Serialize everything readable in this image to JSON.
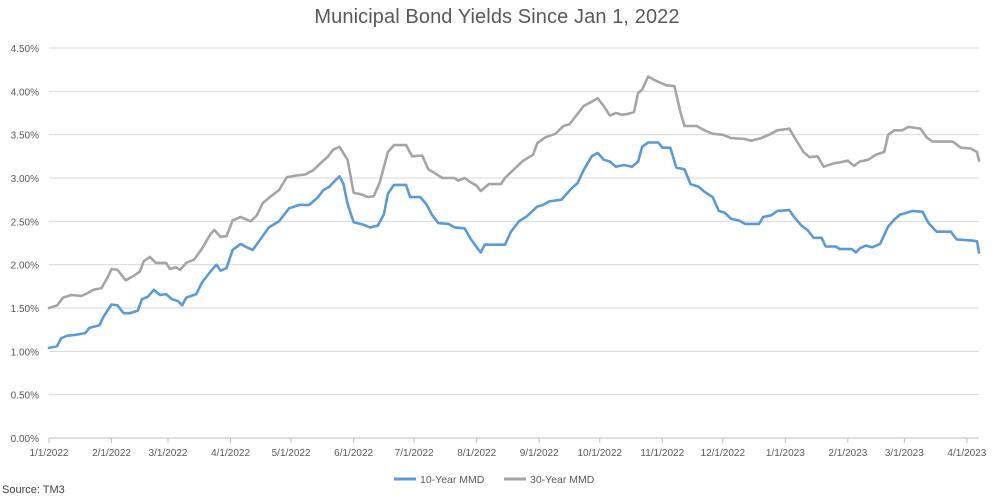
{
  "chart_data": {
    "type": "line",
    "title": "Municipal Bond Yields Since Jan 1, 2022",
    "source": "Source: TM3",
    "xlabel": "",
    "ylabel": "",
    "ylim": [
      0,
      4.5
    ],
    "y_ticks": [
      "0.00%",
      "0.50%",
      "1.00%",
      "1.50%",
      "2.00%",
      "2.50%",
      "3.00%",
      "3.50%",
      "4.00%",
      "4.50%"
    ],
    "x_ticks": [
      "1/1/2022",
      "2/1/2022",
      "3/1/2022",
      "4/1/2022",
      "5/1/2022",
      "6/1/2022",
      "7/1/2022",
      "8/1/2022",
      "9/1/2022",
      "10/1/2022",
      "11/1/2022",
      "12/1/2022",
      "1/1/2023",
      "2/1/2023",
      "3/1/2023",
      "4/1/2023"
    ],
    "x_range": [
      "2022-01-01",
      "2023-04-07"
    ],
    "grid": "horizontal",
    "legend": "bottom-center",
    "series": [
      {
        "name": "10-Year MMD",
        "color": "#5B9BD5",
        "points": [
          [
            "2022-01-01",
            1.04
          ],
          [
            "2022-01-05",
            1.06
          ],
          [
            "2022-01-07",
            1.15
          ],
          [
            "2022-01-10",
            1.18
          ],
          [
            "2022-01-14",
            1.19
          ],
          [
            "2022-01-19",
            1.21
          ],
          [
            "2022-01-21",
            1.27
          ],
          [
            "2022-01-26",
            1.3
          ],
          [
            "2022-01-28",
            1.4
          ],
          [
            "2022-02-01",
            1.54
          ],
          [
            "2022-02-04",
            1.53
          ],
          [
            "2022-02-07",
            1.44
          ],
          [
            "2022-02-10",
            1.44
          ],
          [
            "2022-02-14",
            1.47
          ],
          [
            "2022-02-16",
            1.6
          ],
          [
            "2022-02-19",
            1.63
          ],
          [
            "2022-02-22",
            1.71
          ],
          [
            "2022-02-25",
            1.65
          ],
          [
            "2022-02-28",
            1.66
          ],
          [
            "2022-03-03",
            1.6
          ],
          [
            "2022-03-06",
            1.58
          ],
          [
            "2022-03-08",
            1.53
          ],
          [
            "2022-03-10",
            1.62
          ],
          [
            "2022-03-15",
            1.66
          ],
          [
            "2022-03-18",
            1.8
          ],
          [
            "2022-03-22",
            1.92
          ],
          [
            "2022-03-25",
            2.0
          ],
          [
            "2022-03-27",
            1.93
          ],
          [
            "2022-03-30",
            1.96
          ],
          [
            "2022-04-02",
            2.17
          ],
          [
            "2022-04-06",
            2.24
          ],
          [
            "2022-04-09",
            2.2
          ],
          [
            "2022-04-12",
            2.17
          ],
          [
            "2022-04-16",
            2.3
          ],
          [
            "2022-04-20",
            2.43
          ],
          [
            "2022-04-25",
            2.5
          ],
          [
            "2022-04-30",
            2.65
          ],
          [
            "2022-05-05",
            2.69
          ],
          [
            "2022-05-10",
            2.69
          ],
          [
            "2022-05-14",
            2.77
          ],
          [
            "2022-05-17",
            2.86
          ],
          [
            "2022-05-20",
            2.9
          ],
          [
            "2022-05-22",
            2.95
          ],
          [
            "2022-05-25",
            3.02
          ],
          [
            "2022-05-27",
            2.93
          ],
          [
            "2022-05-29",
            2.7
          ],
          [
            "2022-06-01",
            2.49
          ],
          [
            "2022-06-06",
            2.46
          ],
          [
            "2022-06-09",
            2.43
          ],
          [
            "2022-06-13",
            2.45
          ],
          [
            "2022-06-16",
            2.58
          ],
          [
            "2022-06-18",
            2.82
          ],
          [
            "2022-06-21",
            2.92
          ],
          [
            "2022-06-27",
            2.92
          ],
          [
            "2022-06-29",
            2.78
          ],
          [
            "2022-07-04",
            2.78
          ],
          [
            "2022-07-07",
            2.7
          ],
          [
            "2022-07-10",
            2.57
          ],
          [
            "2022-07-13",
            2.48
          ],
          [
            "2022-07-18",
            2.47
          ],
          [
            "2022-07-21",
            2.43
          ],
          [
            "2022-07-26",
            2.42
          ],
          [
            "2022-07-29",
            2.3
          ],
          [
            "2022-08-01",
            2.2
          ],
          [
            "2022-08-03",
            2.14
          ],
          [
            "2022-08-05",
            2.23
          ],
          [
            "2022-08-15",
            2.23
          ],
          [
            "2022-08-18",
            2.38
          ],
          [
            "2022-08-22",
            2.5
          ],
          [
            "2022-08-26",
            2.56
          ],
          [
            "2022-08-31",
            2.67
          ],
          [
            "2022-09-03",
            2.69
          ],
          [
            "2022-09-06",
            2.73
          ],
          [
            "2022-09-12",
            2.75
          ],
          [
            "2022-09-17",
            2.88
          ],
          [
            "2022-09-20",
            2.94
          ],
          [
            "2022-09-23",
            3.09
          ],
          [
            "2022-09-27",
            3.25
          ],
          [
            "2022-09-30",
            3.29
          ],
          [
            "2022-10-03",
            3.21
          ],
          [
            "2022-10-06",
            3.19
          ],
          [
            "2022-10-09",
            3.13
          ],
          [
            "2022-10-13",
            3.15
          ],
          [
            "2022-10-17",
            3.13
          ],
          [
            "2022-10-20",
            3.19
          ],
          [
            "2022-10-22",
            3.36
          ],
          [
            "2022-10-25",
            3.41
          ],
          [
            "2022-10-30",
            3.41
          ],
          [
            "2022-11-01",
            3.35
          ],
          [
            "2022-11-05",
            3.35
          ],
          [
            "2022-11-08",
            3.12
          ],
          [
            "2022-11-12",
            3.1
          ],
          [
            "2022-11-15",
            2.93
          ],
          [
            "2022-11-19",
            2.9
          ],
          [
            "2022-11-22",
            2.84
          ],
          [
            "2022-11-26",
            2.78
          ],
          [
            "2022-11-29",
            2.62
          ],
          [
            "2022-12-02",
            2.6
          ],
          [
            "2022-12-05",
            2.53
          ],
          [
            "2022-12-09",
            2.51
          ],
          [
            "2022-12-12",
            2.47
          ],
          [
            "2022-12-19",
            2.47
          ],
          [
            "2022-12-21",
            2.55
          ],
          [
            "2022-12-25",
            2.57
          ],
          [
            "2022-12-28",
            2.62
          ],
          [
            "2023-01-03",
            2.63
          ],
          [
            "2023-01-05",
            2.56
          ],
          [
            "2023-01-09",
            2.45
          ],
          [
            "2023-01-12",
            2.4
          ],
          [
            "2023-01-15",
            2.31
          ],
          [
            "2023-01-19",
            2.31
          ],
          [
            "2023-01-21",
            2.21
          ],
          [
            "2023-01-26",
            2.21
          ],
          [
            "2023-01-28",
            2.18
          ],
          [
            "2023-02-03",
            2.18
          ],
          [
            "2023-02-05",
            2.14
          ],
          [
            "2023-02-07",
            2.19
          ],
          [
            "2023-02-10",
            2.22
          ],
          [
            "2023-02-13",
            2.2
          ],
          [
            "2023-02-17",
            2.24
          ],
          [
            "2023-02-21",
            2.44
          ],
          [
            "2023-02-24",
            2.52
          ],
          [
            "2023-02-27",
            2.58
          ],
          [
            "2023-03-01",
            2.59
          ],
          [
            "2023-03-05",
            2.62
          ],
          [
            "2023-03-10",
            2.61
          ],
          [
            "2023-03-13",
            2.48
          ],
          [
            "2023-03-17",
            2.38
          ],
          [
            "2023-03-24",
            2.38
          ],
          [
            "2023-03-27",
            2.29
          ],
          [
            "2023-04-03",
            2.28
          ],
          [
            "2023-04-06",
            2.27
          ],
          [
            "2023-04-07",
            2.14
          ]
        ]
      },
      {
        "name": "30-Year MMD",
        "color": "#A5A5A5",
        "points": [
          [
            "2022-01-01",
            1.5
          ],
          [
            "2022-01-05",
            1.53
          ],
          [
            "2022-01-08",
            1.62
          ],
          [
            "2022-01-12",
            1.65
          ],
          [
            "2022-01-17",
            1.64
          ],
          [
            "2022-01-20",
            1.67
          ],
          [
            "2022-01-23",
            1.71
          ],
          [
            "2022-01-27",
            1.73
          ],
          [
            "2022-01-30",
            1.85
          ],
          [
            "2022-02-01",
            1.95
          ],
          [
            "2022-02-04",
            1.94
          ],
          [
            "2022-02-08",
            1.82
          ],
          [
            "2022-02-12",
            1.87
          ],
          [
            "2022-02-15",
            1.92
          ],
          [
            "2022-02-17",
            2.04
          ],
          [
            "2022-02-20",
            2.09
          ],
          [
            "2022-02-23",
            2.02
          ],
          [
            "2022-02-28",
            2.02
          ],
          [
            "2022-03-02",
            1.95
          ],
          [
            "2022-03-05",
            1.97
          ],
          [
            "2022-03-07",
            1.94
          ],
          [
            "2022-03-10",
            2.02
          ],
          [
            "2022-03-14",
            2.06
          ],
          [
            "2022-03-18",
            2.19
          ],
          [
            "2022-03-22",
            2.35
          ],
          [
            "2022-03-24",
            2.4
          ],
          [
            "2022-03-27",
            2.32
          ],
          [
            "2022-03-30",
            2.33
          ],
          [
            "2022-04-02",
            2.51
          ],
          [
            "2022-04-06",
            2.55
          ],
          [
            "2022-04-11",
            2.5
          ],
          [
            "2022-04-14",
            2.57
          ],
          [
            "2022-04-17",
            2.71
          ],
          [
            "2022-04-21",
            2.79
          ],
          [
            "2022-04-25",
            2.86
          ],
          [
            "2022-04-29",
            3.01
          ],
          [
            "2022-05-04",
            3.03
          ],
          [
            "2022-05-08",
            3.04
          ],
          [
            "2022-05-12",
            3.09
          ],
          [
            "2022-05-16",
            3.18
          ],
          [
            "2022-05-19",
            3.24
          ],
          [
            "2022-05-22",
            3.33
          ],
          [
            "2022-05-25",
            3.36
          ],
          [
            "2022-05-29",
            3.21
          ],
          [
            "2022-06-01",
            2.83
          ],
          [
            "2022-06-05",
            2.81
          ],
          [
            "2022-06-08",
            2.78
          ],
          [
            "2022-06-11",
            2.79
          ],
          [
            "2022-06-14",
            2.95
          ],
          [
            "2022-06-18",
            3.3
          ],
          [
            "2022-06-21",
            3.38
          ],
          [
            "2022-06-27",
            3.38
          ],
          [
            "2022-06-30",
            3.25
          ],
          [
            "2022-07-05",
            3.26
          ],
          [
            "2022-07-08",
            3.1
          ],
          [
            "2022-07-11",
            3.06
          ],
          [
            "2022-07-15",
            3.0
          ],
          [
            "2022-07-21",
            3.0
          ],
          [
            "2022-07-23",
            2.97
          ],
          [
            "2022-07-26",
            3.0
          ],
          [
            "2022-07-29",
            2.95
          ],
          [
            "2022-08-01",
            2.91
          ],
          [
            "2022-08-03",
            2.85
          ],
          [
            "2022-08-07",
            2.93
          ],
          [
            "2022-08-13",
            2.93
          ],
          [
            "2022-08-15",
            3.0
          ],
          [
            "2022-08-19",
            3.09
          ],
          [
            "2022-08-24",
            3.2
          ],
          [
            "2022-08-29",
            3.27
          ],
          [
            "2022-08-31",
            3.4
          ],
          [
            "2022-09-04",
            3.47
          ],
          [
            "2022-09-09",
            3.51
          ],
          [
            "2022-09-13",
            3.6
          ],
          [
            "2022-09-16",
            3.62
          ],
          [
            "2022-09-19",
            3.71
          ],
          [
            "2022-09-23",
            3.83
          ],
          [
            "2022-09-27",
            3.88
          ],
          [
            "2022-09-30",
            3.92
          ],
          [
            "2022-10-03",
            3.83
          ],
          [
            "2022-10-06",
            3.72
          ],
          [
            "2022-10-09",
            3.75
          ],
          [
            "2022-10-12",
            3.73
          ],
          [
            "2022-10-15",
            3.74
          ],
          [
            "2022-10-18",
            3.76
          ],
          [
            "2022-10-20",
            3.98
          ],
          [
            "2022-10-22",
            4.02
          ],
          [
            "2022-10-25",
            4.17
          ],
          [
            "2022-10-29",
            4.12
          ],
          [
            "2022-11-03",
            4.07
          ],
          [
            "2022-11-07",
            4.06
          ],
          [
            "2022-11-10",
            3.76
          ],
          [
            "2022-11-12",
            3.6
          ],
          [
            "2022-11-18",
            3.6
          ],
          [
            "2022-11-22",
            3.55
          ],
          [
            "2022-11-26",
            3.51
          ],
          [
            "2022-12-01",
            3.5
          ],
          [
            "2022-12-05",
            3.46
          ],
          [
            "2022-12-12",
            3.45
          ],
          [
            "2022-12-15",
            3.43
          ],
          [
            "2022-12-20",
            3.46
          ],
          [
            "2022-12-24",
            3.5
          ],
          [
            "2022-12-28",
            3.55
          ],
          [
            "2023-01-03",
            3.57
          ],
          [
            "2023-01-06",
            3.45
          ],
          [
            "2023-01-10",
            3.3
          ],
          [
            "2023-01-13",
            3.24
          ],
          [
            "2023-01-17",
            3.25
          ],
          [
            "2023-01-20",
            3.13
          ],
          [
            "2023-01-25",
            3.17
          ],
          [
            "2023-01-28",
            3.18
          ],
          [
            "2023-02-01",
            3.2
          ],
          [
            "2023-02-04",
            3.14
          ],
          [
            "2023-02-07",
            3.19
          ],
          [
            "2023-02-11",
            3.21
          ],
          [
            "2023-02-15",
            3.27
          ],
          [
            "2023-02-19",
            3.3
          ],
          [
            "2023-02-21",
            3.5
          ],
          [
            "2023-02-24",
            3.55
          ],
          [
            "2023-02-28",
            3.55
          ],
          [
            "2023-03-03",
            3.59
          ],
          [
            "2023-03-09",
            3.57
          ],
          [
            "2023-03-12",
            3.47
          ],
          [
            "2023-03-15",
            3.42
          ],
          [
            "2023-03-25",
            3.42
          ],
          [
            "2023-03-29",
            3.35
          ],
          [
            "2023-04-03",
            3.34
          ],
          [
            "2023-04-06",
            3.3
          ],
          [
            "2023-04-07",
            3.2
          ]
        ]
      }
    ]
  }
}
